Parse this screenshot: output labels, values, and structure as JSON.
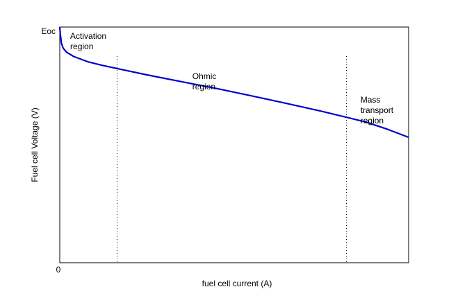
{
  "chart_data": {
    "type": "line",
    "title": "",
    "xlabel": "fuel cell current (A)",
    "ylabel": "Fuel cell Voltage (V)",
    "xlim": [
      0,
      1
    ],
    "ylim": [
      0,
      1
    ],
    "grid": false,
    "x_tick_labels": [
      {
        "value": 0,
        "label": "0"
      }
    ],
    "y_tick_labels": [
      {
        "value": 0.983,
        "label": "Eoc"
      }
    ],
    "region_boundaries": [
      0.164,
      0.82
    ],
    "annotations": [
      {
        "id": "activation",
        "lines": [
          "Activation",
          "region"
        ],
        "x": 0.03,
        "y": 0.95
      },
      {
        "id": "ohmic",
        "lines": [
          "Ohmic",
          "region"
        ],
        "x": 0.38,
        "y": 0.78
      },
      {
        "id": "mass",
        "lines": [
          "Mass",
          "transport",
          "region"
        ],
        "x": 0.862,
        "y": 0.68
      }
    ],
    "series": [
      {
        "color": "#0000cc",
        "points": [
          [
            0.0,
            1.0
          ],
          [
            0.002,
            0.965
          ],
          [
            0.005,
            0.93
          ],
          [
            0.01,
            0.91
          ],
          [
            0.02,
            0.893
          ],
          [
            0.04,
            0.875
          ],
          [
            0.08,
            0.853
          ],
          [
            0.12,
            0.838
          ],
          [
            0.164,
            0.824
          ],
          [
            0.25,
            0.797
          ],
          [
            0.35,
            0.768
          ],
          [
            0.45,
            0.739
          ],
          [
            0.55,
            0.708
          ],
          [
            0.65,
            0.676
          ],
          [
            0.75,
            0.643
          ],
          [
            0.82,
            0.618
          ],
          [
            0.88,
            0.596
          ],
          [
            0.94,
            0.566
          ],
          [
            1.0,
            0.532
          ]
        ]
      }
    ]
  }
}
